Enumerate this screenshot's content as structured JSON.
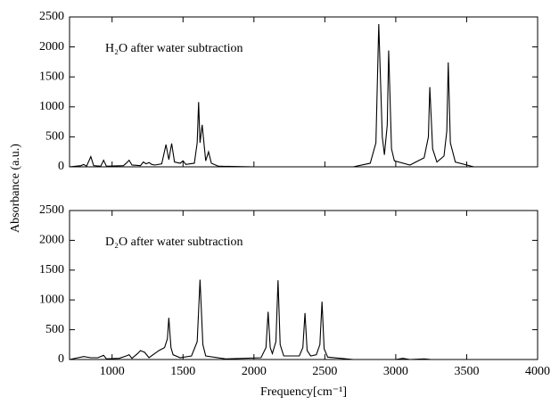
{
  "chart_data": [
    {
      "type": "line",
      "annotation": "H₂O after water subtraction",
      "y_label": "Absorbance (a.u.)",
      "color": "#000000",
      "xlim": [
        700,
        4000
      ],
      "xticks": [
        1000,
        1500,
        2000,
        2500,
        3000,
        3500,
        4000
      ],
      "ylim": [
        0,
        2500
      ],
      "yticks": [
        0,
        500,
        1000,
        1500,
        2000,
        2500
      ],
      "x": [
        700,
        780,
        800,
        820,
        850,
        870,
        920,
        940,
        960,
        1080,
        1100,
        1120,
        1140,
        1200,
        1220,
        1240,
        1260,
        1280,
        1300,
        1350,
        1380,
        1400,
        1420,
        1440,
        1480,
        1500,
        1520,
        1580,
        1600,
        1610,
        1620,
        1635,
        1660,
        1680,
        1700,
        1750,
        2000,
        2700,
        2820,
        2860,
        2880,
        2905,
        2920,
        2940,
        2950,
        2970,
        2990,
        3100,
        3200,
        3230,
        3240,
        3260,
        3290,
        3340,
        3360,
        3370,
        3385,
        3420,
        3550,
        4000
      ],
      "y": [
        0,
        20,
        40,
        10,
        170,
        20,
        10,
        110,
        10,
        20,
        60,
        110,
        30,
        20,
        80,
        50,
        70,
        40,
        30,
        50,
        370,
        120,
        390,
        80,
        60,
        100,
        40,
        60,
        400,
        1080,
        400,
        700,
        100,
        250,
        60,
        10,
        0,
        0,
        60,
        400,
        2380,
        500,
        200,
        700,
        1940,
        300,
        100,
        30,
        150,
        500,
        1330,
        300,
        80,
        180,
        600,
        1740,
        400,
        80,
        0,
        0
      ]
    },
    {
      "type": "line",
      "annotation": "D₂O after water subtraction",
      "x_label": "Frequency[cm⁻¹]",
      "color": "#000000",
      "xlim": [
        700,
        4000
      ],
      "xticks": [
        1000,
        1500,
        2000,
        2500,
        3000,
        3500,
        4000
      ],
      "ylim": [
        0,
        2500
      ],
      "yticks": [
        0,
        500,
        1000,
        1500,
        2000,
        2500
      ],
      "x": [
        700,
        800,
        850,
        900,
        940,
        960,
        1050,
        1100,
        1120,
        1140,
        1180,
        1200,
        1230,
        1260,
        1330,
        1370,
        1390,
        1400,
        1415,
        1430,
        1480,
        1560,
        1600,
        1620,
        1640,
        1660,
        1800,
        2050,
        2085,
        2100,
        2115,
        2130,
        2155,
        2170,
        2185,
        2210,
        2320,
        2345,
        2360,
        2375,
        2400,
        2440,
        2465,
        2480,
        2495,
        2520,
        2700,
        3000,
        3050,
        3100,
        3200,
        3250,
        4000
      ],
      "y": [
        0,
        50,
        30,
        30,
        70,
        10,
        20,
        60,
        80,
        20,
        100,
        150,
        120,
        30,
        150,
        200,
        350,
        700,
        200,
        80,
        30,
        60,
        300,
        1340,
        250,
        60,
        10,
        30,
        200,
        800,
        200,
        100,
        300,
        1330,
        250,
        60,
        60,
        200,
        780,
        150,
        60,
        80,
        250,
        970,
        180,
        40,
        0,
        0,
        20,
        0,
        10,
        0,
        0
      ]
    }
  ]
}
